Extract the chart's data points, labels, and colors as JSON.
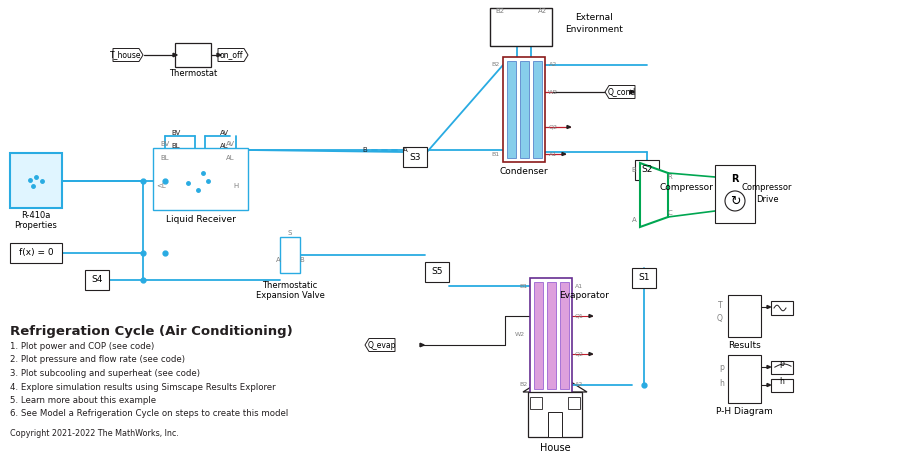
{
  "title": "Refrigeration Cycle (Air Conditioning)",
  "bg_color": "#ffffff",
  "description_lines": [
    "1. Plot power and COP (see code)",
    "2. Plot pressure and flow rate (see code)",
    "3. Plot subcooling and superheat (see code)",
    "4. Explore simulation results using Simscape Results Explorer",
    "5. Learn more about this example",
    "6. See Model a Refrigeration Cycle on steps to create this model"
  ],
  "copyright": "Copyright 2021-2022 The MathWorks, Inc.",
  "colors": {
    "cyan": "#29ABE2",
    "green": "#00A651",
    "purple": "#662D91",
    "orange": "#F7941D",
    "dark_red": "#BE1E2D",
    "black": "#231F20",
    "gray": "#808080",
    "white": "#ffffff",
    "light_cyan_fill": "#E8F8FF",
    "light_purple_fill": "#F3E8FF"
  }
}
